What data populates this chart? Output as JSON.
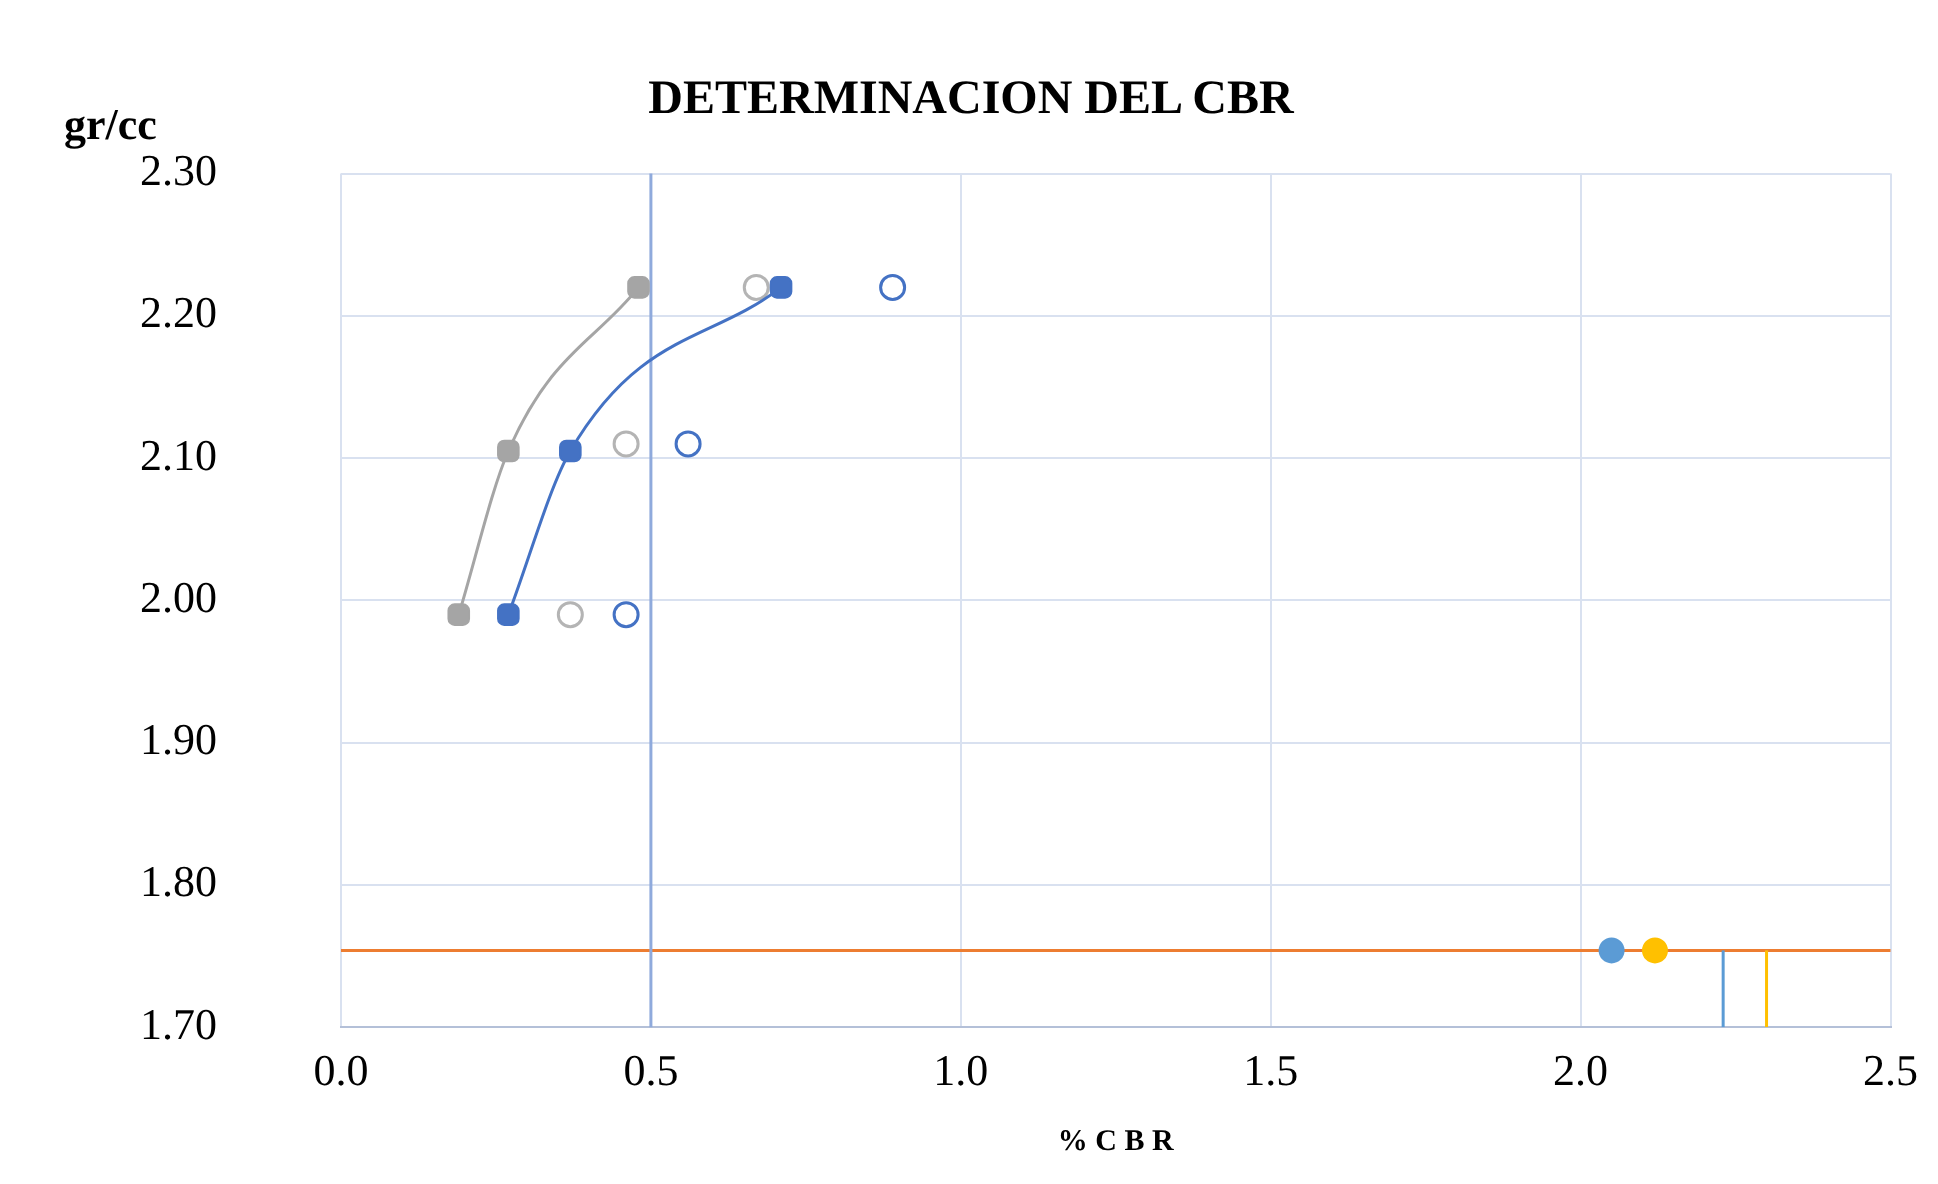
{
  "chart_data": {
    "type": "line",
    "title": "DETERMINACION DEL CBR",
    "xlabel": "% C B R",
    "ylabel": "gr/cc",
    "xlim": [
      0,
      2.5
    ],
    "xticks": [
      {
        "value": 0,
        "label": "0.0"
      },
      0.5,
      {
        "value": 1,
        "label": "1.0"
      },
      1.5,
      {
        "value": 2,
        "label": "2.0"
      },
      2.5
    ],
    "ylim": [
      1.7,
      2.3
    ],
    "yticks": [
      {
        "value": 1.7,
        "label": "1.70"
      },
      {
        "value": 1.8,
        "label": "1.80"
      },
      {
        "value": 1.9,
        "label": "1.90"
      },
      {
        "value": 2.0,
        "label": "2.00"
      },
      {
        "value": 2.1,
        "label": "2.10"
      },
      {
        "value": 2.2,
        "label": "2.20"
      },
      {
        "value": 2.3,
        "label": "2.30"
      }
    ],
    "grid": true,
    "legend": false,
    "series": [
      {
        "type": "line",
        "color": "#a5a5a5",
        "marker": "square",
        "x": [
          0.19,
          0.27,
          0.48
        ],
        "values": [
          1.99,
          2.105,
          2.22
        ]
      },
      {
        "type": "line",
        "color": "#4472c4",
        "marker": "square",
        "x": [
          0.27,
          0.37,
          0.71
        ],
        "values": [
          1.99,
          2.105,
          2.22
        ]
      },
      {
        "type": "scatter",
        "color": "#b4b4b4",
        "marker": "circle",
        "x": [
          0.37,
          0.46,
          0.67
        ],
        "values": [
          1.99,
          2.11,
          2.22
        ]
      },
      {
        "type": "scatter",
        "color": "#4472c4",
        "marker": "circle",
        "x": [
          0.46,
          0.56,
          0.89
        ],
        "values": [
          1.99,
          2.11,
          2.22
        ]
      },
      {
        "type": "line",
        "color": "#5b9bd5",
        "marker": "circle",
        "x": [
          2.05
        ],
        "values": [
          1.754
        ]
      },
      {
        "type": "line",
        "color": "#ffc000",
        "marker": "circle",
        "x": [
          2.12
        ],
        "values": [
          1.754
        ]
      },
      {
        "type": "line",
        "color": "#5b9bd5",
        "marker": "none",
        "x": [
          2.23,
          2.23
        ],
        "values": [
          1.7,
          1.754
        ]
      },
      {
        "type": "line",
        "color": "#ffc000",
        "marker": "none",
        "x": [
          2.3,
          2.3
        ],
        "values": [
          1.7,
          1.754
        ]
      }
    ],
    "ref_lines": [
      {
        "axis": "y",
        "value": 1.754,
        "color": "#ed7d31"
      },
      {
        "axis": "x",
        "value": 0.5,
        "color": "#8faadc"
      }
    ]
  }
}
